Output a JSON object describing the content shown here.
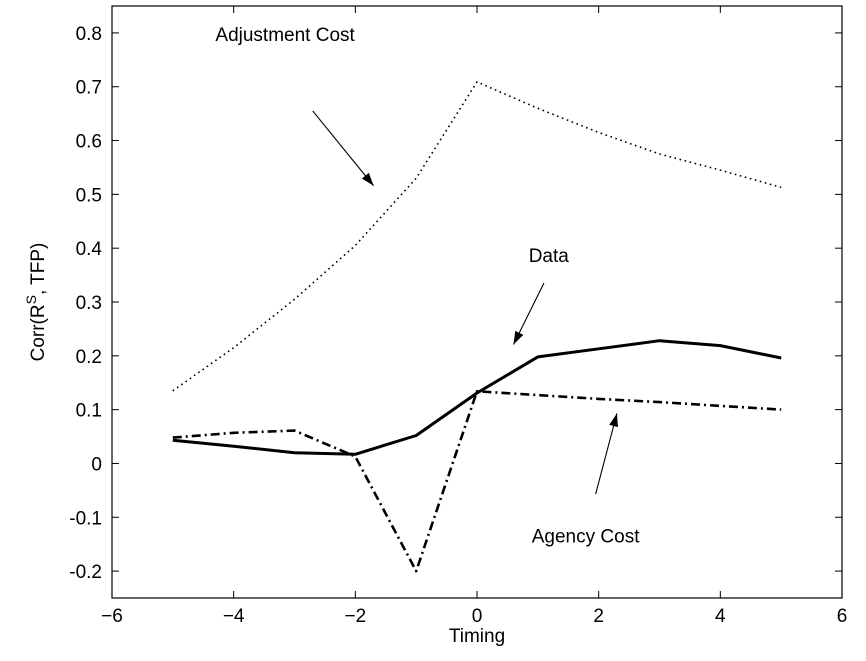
{
  "chart_data": {
    "type": "line",
    "xlabel": "Timing",
    "ylabel": {
      "prefix": "Corr(R",
      "superscript": "S",
      "suffix": ", TFP)"
    },
    "xlim": [
      -6,
      6
    ],
    "ylim": [
      -0.25,
      0.85
    ],
    "xticks": [
      -6,
      -4,
      -2,
      0,
      2,
      4,
      6
    ],
    "xtick_labels": [
      "−6",
      "−4",
      "−2",
      "0",
      "2",
      "4",
      "6"
    ],
    "yticks": [
      -0.2,
      -0.1,
      0,
      0.1,
      0.2,
      0.3,
      0.4,
      0.5,
      0.6,
      0.7,
      0.8
    ],
    "ytick_labels": [
      "-0.2",
      "-0.1",
      "0",
      "0.1",
      "0.2",
      "0.3",
      "0.4",
      "0.5",
      "0.6",
      "0.7",
      "0.8"
    ],
    "grid": false,
    "x": [
      -5,
      -4,
      -3,
      -2,
      -1,
      0,
      1,
      2,
      3,
      4,
      5
    ],
    "series": [
      {
        "key": "data",
        "style": "solid",
        "color": "#000000",
        "values": [
          0.043,
          0.032,
          0.02,
          0.017,
          0.052,
          0.131,
          0.198,
          0.213,
          0.228,
          0.219,
          0.196
        ]
      },
      {
        "key": "adjustment",
        "style": "dotted",
        "color": "#000000",
        "values": [
          0.135,
          0.215,
          0.305,
          0.405,
          0.53,
          0.709,
          0.66,
          0.615,
          0.575,
          0.545,
          0.513
        ]
      },
      {
        "key": "agency",
        "style": "dashdot",
        "color": "#000000",
        "values": [
          0.048,
          0.057,
          0.061,
          0.013,
          -0.2,
          0.134,
          0.127,
          0.12,
          0.114,
          0.107,
          0.1
        ]
      }
    ],
    "annotations": [
      {
        "text": "Adjustment Cost",
        "text_at": [
          -4.3,
          0.785
        ],
        "arrow_from": [
          -2.7,
          0.655
        ],
        "arrow_to": [
          -1.7,
          0.516
        ]
      },
      {
        "text": "Data",
        "text_at": [
          0.85,
          0.374
        ],
        "arrow_from": [
          1.1,
          0.335
        ],
        "arrow_to": [
          0.6,
          0.221
        ]
      },
      {
        "text": "Agency Cost",
        "text_at": [
          0.9,
          -0.147
        ],
        "arrow_from": [
          1.95,
          -0.057
        ],
        "arrow_to": [
          2.3,
          0.093
        ]
      }
    ]
  }
}
